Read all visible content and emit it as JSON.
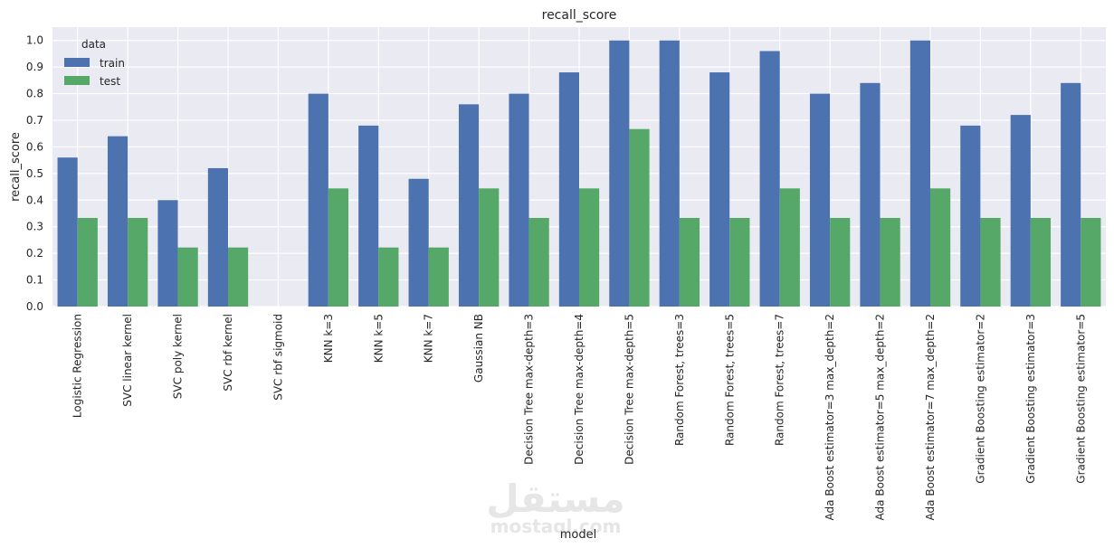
{
  "chart_data": {
    "type": "bar",
    "title": "recall_score",
    "xlabel": "model",
    "ylabel": "recall_score",
    "ylim": [
      0,
      1.05
    ],
    "yticks": [
      "0.0",
      "0.1",
      "0.2",
      "0.3",
      "0.4",
      "0.5",
      "0.6",
      "0.7",
      "0.8",
      "0.9",
      "1.0"
    ],
    "grid": true,
    "legend": {
      "title": "data",
      "placement": "top-left"
    },
    "categories": [
      "Logistic Regression",
      "SVC linear kernel",
      "SVC poly kernel",
      "SVC rbf kernel",
      "SVC rbf sigmoid",
      "KNN k=3",
      "KNN k=5",
      "KNN k=7",
      "Gaussian NB",
      "Decision Tree max-depth=3",
      "Decision Tree max-depth=4",
      "Decision Tree max-depth=5",
      "Random Forest, trees=3",
      "Random Forest, trees=5",
      "Random Forest, trees=7",
      "Ada Boost estimator=3 max_depth=2",
      "Ada Boost estimator=5 max_depth=2",
      "Ada Boost estimator=7 max_depth=2",
      "Gradient Boosting estimator=2",
      "Gradient Boosting estimator=3",
      "Gradient Boosting estimator=5"
    ],
    "series": [
      {
        "name": "train",
        "color": "#4c72b0",
        "values": [
          0.56,
          0.64,
          0.4,
          0.52,
          0.0,
          0.8,
          0.68,
          0.48,
          0.76,
          0.8,
          0.88,
          1.0,
          1.0,
          0.88,
          0.96,
          0.8,
          0.84,
          1.0,
          0.68,
          0.72,
          0.84
        ]
      },
      {
        "name": "test",
        "color": "#55a868",
        "values": [
          0.333,
          0.333,
          0.222,
          0.222,
          0.0,
          0.444,
          0.222,
          0.222,
          0.444,
          0.333,
          0.444,
          0.667,
          0.333,
          0.333,
          0.444,
          0.333,
          0.333,
          0.444,
          0.333,
          0.333,
          0.333
        ]
      }
    ]
  },
  "watermark": {
    "main": "مستقل",
    "sub": "mostaql.com"
  },
  "colors": {
    "axes_background": "#eaeaf2",
    "grid": "#ffffff"
  }
}
